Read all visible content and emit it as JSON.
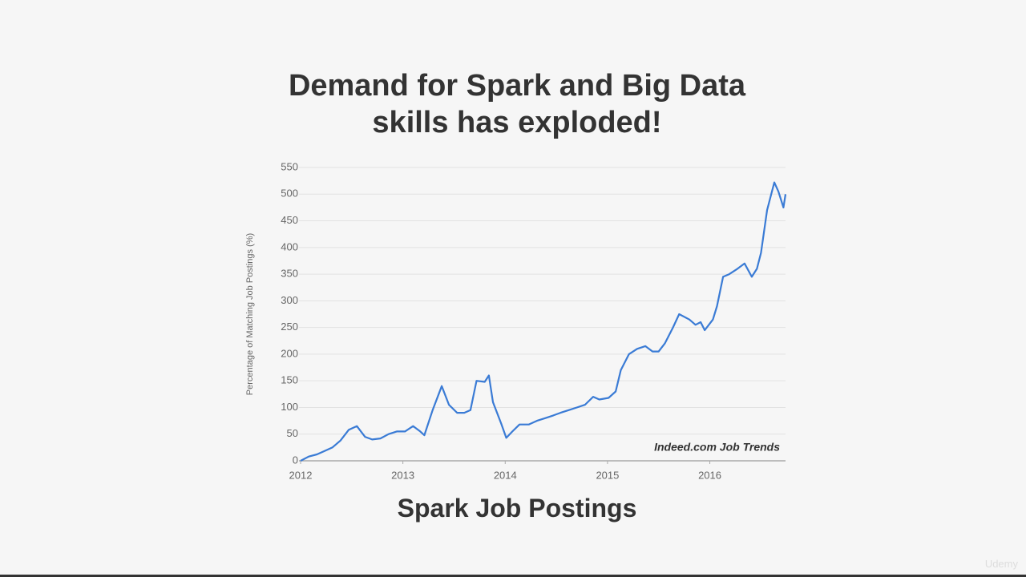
{
  "chart_data": {
    "type": "line",
    "title": "Demand for Spark and Big Data skills has exploded!",
    "caption": "Spark Job Postings",
    "y_label": "Percentage of Matching Job Postings (%)",
    "annotation": "Indeed.com Job Trends",
    "watermark": "Udemy",
    "x": [
      2012.0,
      2012.08,
      2012.16,
      2012.23,
      2012.31,
      2012.39,
      2012.47,
      2012.55,
      2012.59,
      2012.63,
      2012.7,
      2012.78,
      2012.86,
      2012.94,
      2013.02,
      2013.1,
      2013.17,
      2013.21,
      2013.29,
      2013.38,
      2013.45,
      2013.53,
      2013.6,
      2013.66,
      2013.72,
      2013.8,
      2013.84,
      2013.88,
      2013.96,
      2014.01,
      2014.07,
      2014.14,
      2014.23,
      2014.31,
      2014.39,
      2014.47,
      2014.54,
      2014.62,
      2014.7,
      2014.78,
      2014.86,
      2014.92,
      2015.01,
      2015.08,
      2015.13,
      2015.21,
      2015.29,
      2015.37,
      2015.44,
      2015.5,
      2015.56,
      2015.64,
      2015.7,
      2015.8,
      2015.86,
      2015.91,
      2015.95,
      2016.03,
      2016.07,
      2016.13,
      2016.19,
      2016.27,
      2016.34,
      2016.41,
      2016.46,
      2016.5,
      2016.56,
      2016.63,
      2016.67,
      2016.72,
      2016.74
    ],
    "series": [
      {
        "color": "#3a7bd5",
        "values": [
          0,
          8,
          12,
          18,
          25,
          38,
          58,
          65,
          55,
          45,
          40,
          42,
          50,
          55,
          55,
          65,
          55,
          48,
          95,
          140,
          105,
          90,
          90,
          95,
          150,
          148,
          160,
          110,
          70,
          43,
          55,
          68,
          68,
          75,
          80,
          85,
          90,
          95,
          100,
          105,
          120,
          115,
          118,
          130,
          170,
          200,
          210,
          215,
          205,
          205,
          220,
          250,
          275,
          265,
          255,
          260,
          245,
          265,
          290,
          345,
          350,
          360,
          370,
          345,
          360,
          390,
          470,
          522,
          505,
          475,
          500
        ]
      }
    ],
    "xlim": [
      2012,
      2016.74
    ],
    "xticks": [
      2012,
      2013,
      2014,
      2015,
      2016
    ],
    "ylim": [
      0,
      550
    ],
    "yticks": [
      0,
      50,
      100,
      150,
      200,
      250,
      300,
      350,
      400,
      450,
      500,
      550
    ],
    "grid": true
  }
}
